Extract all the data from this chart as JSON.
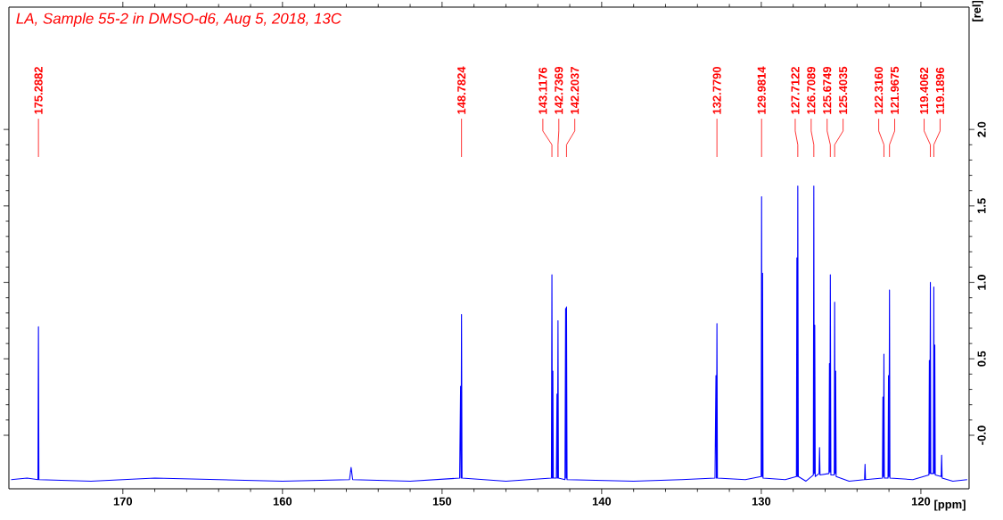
{
  "chart_data": {
    "type": "line",
    "title": "LA, Sample 55-2 in DMSO-d6, Aug 5, 2018, 13C",
    "xlabel": "[ppm]",
    "ylabel": "[rel]",
    "xlim": [
      177.14,
      116.98
    ],
    "ylim": [
      -0.35,
      2.8
    ],
    "xticks": [
      170,
      160,
      150,
      140,
      130,
      120
    ],
    "yticks": [
      {
        "value": 0,
        "label": "-0.0"
      },
      {
        "value": 0.5,
        "label": "0.5"
      },
      {
        "value": 1,
        "label": "1.0"
      },
      {
        "value": 1.5,
        "label": "1.5"
      },
      {
        "value": 2,
        "label": "2.0"
      }
    ],
    "series": [
      {
        "color": "#0000ff",
        "x": [
          177.0,
          176.0,
          175.32,
          175.2882,
          175.26,
          172,
          168,
          164,
          160,
          155.8,
          155.7,
          155.6,
          152,
          148.9,
          148.84,
          148.81,
          148.7824,
          148.75,
          146,
          143.15,
          143.1176,
          143.09,
          143.06,
          143.03,
          142.84,
          142.8,
          142.77,
          142.7369,
          142.71,
          142.3,
          142.26,
          142.23,
          142.2037,
          142.17,
          138,
          135,
          132.9,
          132.84,
          132.81,
          132.779,
          132.75,
          131,
          130.01,
          129.9814,
          129.95,
          129.92,
          129.89,
          128.5,
          127.8,
          127.77,
          127.74,
          127.7122,
          127.68,
          127.2,
          126.74,
          126.7089,
          126.68,
          126.65,
          126.62,
          126.38,
          126.35,
          126.32,
          125.76,
          125.73,
          125.7,
          125.6749,
          125.64,
          125.43,
          125.4035,
          125.37,
          125.34,
          125.31,
          124.5,
          123.53,
          123.5,
          123.47,
          122.41,
          122.38,
          122.35,
          122.316,
          122.29,
          122.06,
          122.03,
          122.0,
          121.9675,
          121.94,
          120.5,
          119.5,
          119.47,
          119.44,
          119.4062,
          119.38,
          119.22,
          119.1896,
          119.16,
          119.13,
          119.1,
          118.73,
          118.7,
          118.67,
          118.0,
          117.1
        ],
        "values": [
          -0.29,
          -0.28,
          -0.29,
          0.71,
          -0.29,
          -0.3,
          -0.28,
          -0.29,
          -0.3,
          -0.29,
          -0.21,
          -0.29,
          -0.3,
          -0.28,
          0.32,
          -0.28,
          0.79,
          -0.28,
          -0.3,
          -0.28,
          1.05,
          -0.28,
          0.42,
          -0.28,
          -0.28,
          0.27,
          -0.28,
          0.75,
          -0.28,
          -0.29,
          0.83,
          -0.28,
          0.84,
          -0.29,
          -0.3,
          -0.29,
          -0.28,
          0.39,
          -0.28,
          0.73,
          -0.28,
          -0.29,
          -0.27,
          1.56,
          -0.27,
          1.06,
          -0.28,
          -0.29,
          -0.27,
          1.16,
          -0.27,
          1.63,
          -0.27,
          -0.3,
          -0.26,
          1.63,
          -0.25,
          0.72,
          -0.27,
          -0.25,
          -0.08,
          -0.26,
          -0.25,
          0.47,
          -0.24,
          1.05,
          -0.26,
          -0.26,
          0.87,
          -0.25,
          0.42,
          -0.27,
          -0.3,
          -0.29,
          -0.19,
          -0.29,
          -0.28,
          0.25,
          -0.27,
          0.53,
          -0.28,
          -0.28,
          0.39,
          -0.27,
          0.95,
          -0.28,
          -0.29,
          -0.26,
          0.49,
          -0.25,
          1.0,
          -0.25,
          -0.25,
          0.97,
          -0.25,
          0.59,
          -0.26,
          -0.27,
          -0.13,
          -0.28,
          -0.3,
          -0.29
        ]
      }
    ],
    "annotations": [
      {
        "text": "175.2882",
        "x": 175.2882
      },
      {
        "text": "148.7824",
        "x": 148.7824
      },
      {
        "text": "143.1176",
        "x": 143.1176
      },
      {
        "text": "142.7369",
        "x": 142.7369
      },
      {
        "text": "142.2037",
        "x": 142.2037
      },
      {
        "text": "132.7790",
        "x": 132.779
      },
      {
        "text": "129.9814",
        "x": 129.9814
      },
      {
        "text": "127.7122",
        "x": 127.7122
      },
      {
        "text": "126.7089",
        "x": 126.7089
      },
      {
        "text": "125.6749",
        "x": 125.6749
      },
      {
        "text": "125.4035",
        "x": 125.4035
      },
      {
        "text": "122.3160",
        "x": 122.316
      },
      {
        "text": "121.9675",
        "x": 121.9675
      },
      {
        "text": "119.4062",
        "x": 119.4062
      },
      {
        "text": "119.1896",
        "x": 119.1896
      }
    ]
  }
}
